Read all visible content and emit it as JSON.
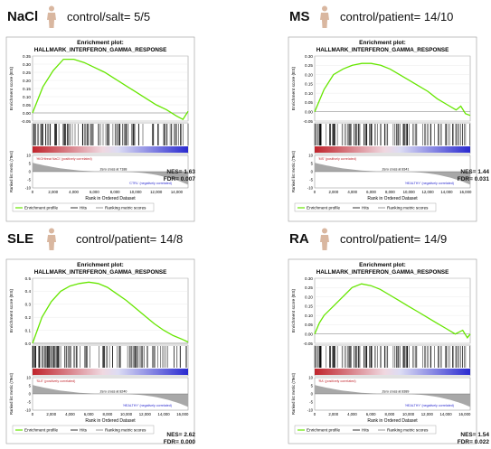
{
  "enrichment_plot_label": "Enrichment plot:",
  "axis_labels": {
    "es": "Enrichment score (ES)",
    "metric": "Ranked list metric (tTest)",
    "rank": "Rank in Ordered Dataset"
  },
  "legend": {
    "profile": "Enrichment profile",
    "hits": "Hits",
    "metric": "Ranking metric scores"
  },
  "colors": {
    "profile": "#66e600",
    "hits": "#000000",
    "metric_fill": "#a8a8a8",
    "positive": "#c0242c",
    "negative": "#2a2ad0"
  },
  "chart_data": [
    {
      "type": "line",
      "condition": "NaCl",
      "ratio_text": "control/salt= 5/5",
      "title": "HALLMARK_INTERFERON_GAMMA_RESPONSE",
      "nes": "NES= 1.63",
      "fdr": "FDR= 0.007",
      "pos_label": "'HIGHtreat NaCl' (positively correlated)",
      "neg_label": "'CTRL' (negatively correlated)",
      "zero_cross": "Zero cross at 7188",
      "ylim": [
        -0.05,
        0.35
      ],
      "yticks": [
        "0.35",
        "0.30",
        "0.25",
        "0.20",
        "0.15",
        "0.10",
        "0.05",
        "0.00",
        "-0.05"
      ],
      "xticks": [
        "0",
        "2,000",
        "4,000",
        "6,000",
        "8,000",
        "10,000",
        "12,000",
        "14,000"
      ],
      "x": [
        0,
        500,
        1000,
        2000,
        3000,
        4000,
        5000,
        6000,
        7000,
        8000,
        9000,
        10000,
        11000,
        12000,
        13000,
        14000,
        14600,
        15100
      ],
      "y": [
        0.0,
        0.08,
        0.16,
        0.26,
        0.33,
        0.33,
        0.31,
        0.28,
        0.25,
        0.21,
        0.17,
        0.13,
        0.09,
        0.05,
        0.02,
        -0.02,
        -0.04,
        0.01
      ],
      "metric_ylim": [
        -10,
        10
      ],
      "metric_yticks": [
        "10",
        "5",
        "0",
        "-5",
        "-10"
      ]
    },
    {
      "type": "line",
      "condition": "MS",
      "ratio_text": "control/patient= 14/10",
      "title": "HALLMARK_INTERFERON_GAMMA_RESPONSE",
      "nes": "NES= 1.44",
      "fdr": "FDR= 0.031",
      "pos_label": "'MS' (positively correlated)",
      "neg_label": "'HEALTHY' (negatively correlated)",
      "zero_cross": "Zero cross at 8341",
      "ylim": [
        -0.05,
        0.3
      ],
      "yticks": [
        "0.30",
        "0.25",
        "0.20",
        "0.15",
        "0.10",
        "0.05",
        "0.00",
        "-0.05"
      ],
      "xticks": [
        "0",
        "2,000",
        "4,000",
        "6,000",
        "8,000",
        "10,000",
        "12,000",
        "14,000",
        "16,000"
      ],
      "x": [
        0,
        500,
        1000,
        2000,
        3000,
        4000,
        5000,
        6000,
        7000,
        8000,
        9000,
        10000,
        11000,
        12000,
        13000,
        14000,
        15000,
        15500,
        16000,
        16500
      ],
      "y": [
        0.0,
        0.06,
        0.12,
        0.2,
        0.23,
        0.25,
        0.26,
        0.26,
        0.25,
        0.23,
        0.2,
        0.17,
        0.14,
        0.11,
        0.07,
        0.04,
        0.01,
        0.03,
        -0.01,
        -0.02
      ],
      "metric_ylim": [
        -10,
        10
      ],
      "metric_yticks": [
        "10",
        "5",
        "0",
        "-5",
        "-10"
      ]
    },
    {
      "type": "line",
      "condition": "SLE",
      "ratio_text": "control/patient= 14/8",
      "title": "HALLMARK_INTERFERON_GAMMA_RESPONSE",
      "nes": "NES= 2.62",
      "fdr": "FDR= 0.000",
      "pos_label": "'SLE' (positively correlated)",
      "neg_label": "'HEALTHY' (negatively correlated)",
      "zero_cross": "Zero cross at 8240",
      "ylim": [
        0.0,
        0.5
      ],
      "yticks": [
        "0.5",
        "0.4",
        "0.3",
        "0.2",
        "0.1",
        "0.0"
      ],
      "xticks": [
        "0",
        "2,000",
        "4,000",
        "6,000",
        "8,000",
        "10,000",
        "12,000",
        "14,000",
        "16,000"
      ],
      "x": [
        0,
        500,
        1000,
        2000,
        3000,
        4000,
        5000,
        6000,
        7000,
        8000,
        9000,
        10000,
        11000,
        12000,
        13000,
        14000,
        15000,
        16000,
        16600
      ],
      "y": [
        0.0,
        0.1,
        0.2,
        0.32,
        0.4,
        0.44,
        0.46,
        0.47,
        0.46,
        0.43,
        0.38,
        0.33,
        0.27,
        0.21,
        0.15,
        0.1,
        0.06,
        0.03,
        0.01
      ],
      "metric_ylim": [
        -10,
        10
      ],
      "metric_yticks": [
        "10",
        "5",
        "0",
        "-5",
        "-10"
      ]
    },
    {
      "type": "line",
      "condition": "RA",
      "ratio_text": "control/patient= 14/9",
      "title": "HALLMARK_INTERFERON_GAMMA_RESPONSE",
      "nes": "NES= 1.54",
      "fdr": "FDR= 0.022",
      "pos_label": "'RA' (positively correlated)",
      "neg_label": "'HEALTHY' (negatively correlated)",
      "zero_cross": "Zero cross at 8389",
      "ylim": [
        -0.05,
        0.3
      ],
      "yticks": [
        "0.30",
        "0.25",
        "0.20",
        "0.15",
        "0.10",
        "0.05",
        "0.00",
        "-0.05"
      ],
      "xticks": [
        "0",
        "2,000",
        "4,000",
        "6,000",
        "8,000",
        "10,000",
        "12,000",
        "14,000",
        "16,000"
      ],
      "x": [
        0,
        500,
        1000,
        2000,
        3000,
        4000,
        5000,
        6000,
        7000,
        8000,
        9000,
        10000,
        11000,
        12000,
        13000,
        14000,
        15000,
        15800,
        16300,
        16600
      ],
      "y": [
        0.0,
        0.06,
        0.1,
        0.15,
        0.2,
        0.25,
        0.27,
        0.26,
        0.24,
        0.21,
        0.18,
        0.15,
        0.12,
        0.09,
        0.06,
        0.03,
        0.0,
        0.02,
        -0.02,
        0.0
      ],
      "metric_ylim": [
        -10,
        10
      ],
      "metric_yticks": [
        "10",
        "5",
        "0",
        "-5",
        "-10"
      ]
    }
  ]
}
